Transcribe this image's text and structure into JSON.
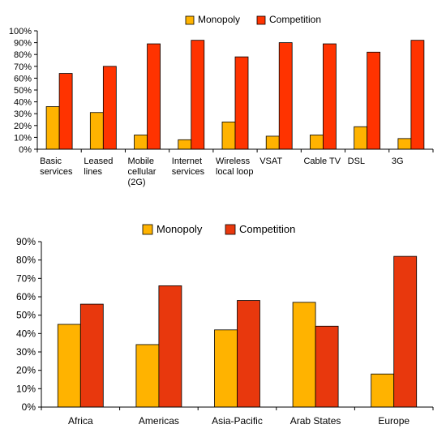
{
  "chart_data": [
    {
      "type": "bar",
      "categories": [
        [
          "Basic",
          "services"
        ],
        [
          "Leased",
          "lines"
        ],
        [
          "Mobile",
          "cellular",
          "(2G)"
        ],
        [
          "Internet",
          "services"
        ],
        [
          "Wireless",
          "local loop"
        ],
        [
          "VSAT"
        ],
        [
          "Cable TV"
        ],
        [
          "DSL"
        ],
        [
          "3G"
        ]
      ],
      "series": [
        {
          "name": "Monopoly",
          "values": [
            36,
            31,
            12,
            8,
            23,
            11,
            12,
            19,
            9
          ],
          "color": "#FFB300"
        },
        {
          "name": "Competition",
          "values": [
            64,
            70,
            89,
            92,
            78,
            90,
            89,
            82,
            92
          ],
          "color": "#FF3300"
        }
      ],
      "yticks": [
        "0%",
        "10%",
        "20%",
        "30%",
        "40%",
        "50%",
        "60%",
        "70%",
        "80%",
        "90%",
        "100%"
      ],
      "ylim": [
        0,
        100
      ],
      "legend": "top"
    },
    {
      "type": "bar",
      "categories": [
        [
          "Africa"
        ],
        [
          "Americas"
        ],
        [
          "Asia-Pacific"
        ],
        [
          "Arab States"
        ],
        [
          "Europe"
        ]
      ],
      "series": [
        {
          "name": "Monopoly",
          "values": [
            45,
            34,
            42,
            57,
            18
          ],
          "color": "#FFB300"
        },
        {
          "name": "Competition",
          "values": [
            56,
            66,
            58,
            44,
            82
          ],
          "color": "#E8380D"
        }
      ],
      "yticks": [
        "0%",
        "10%",
        "20%",
        "30%",
        "40%",
        "50%",
        "60%",
        "70%",
        "80%",
        "90%"
      ],
      "ylim": [
        0,
        90
      ],
      "legend": "top"
    }
  ]
}
